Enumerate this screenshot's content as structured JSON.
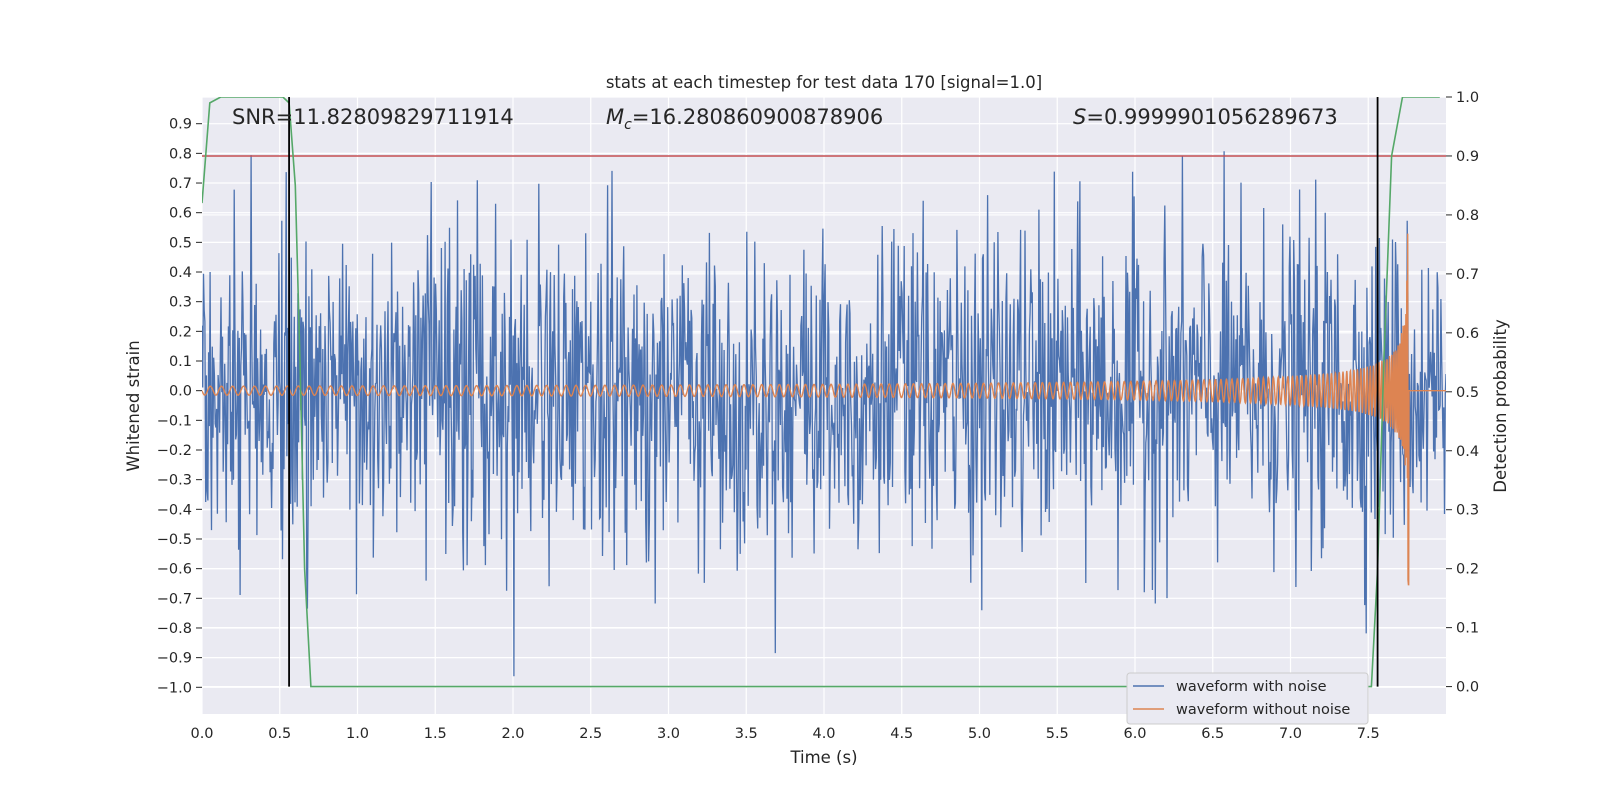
{
  "chart_data": {
    "type": "line",
    "title": "stats at each timestep for test data 170 [signal=1.0]",
    "xlabel": "Time (s)",
    "ylabel": "Whitened strain",
    "y2label": "Detection probability",
    "xlim": [
      0.0,
      8.0
    ],
    "ylim": [
      -1.09,
      0.99
    ],
    "y2lim": [
      -0.0465,
      1.0
    ],
    "xticks": [
      "0.0",
      "0.5",
      "1.0",
      "1.5",
      "2.0",
      "2.5",
      "3.0",
      "3.5",
      "4.0",
      "4.5",
      "5.0",
      "5.5",
      "6.0",
      "6.5",
      "7.0",
      "7.5"
    ],
    "xtick_values": [
      0.0,
      0.5,
      1.0,
      1.5,
      2.0,
      2.5,
      3.0,
      3.5,
      4.0,
      4.5,
      5.0,
      5.5,
      6.0,
      6.5,
      7.0,
      7.5
    ],
    "yticks": [
      "0.9",
      "0.8",
      "0.7",
      "0.6",
      "0.5",
      "0.4",
      "0.3",
      "0.2",
      "0.1",
      "0.0",
      "−0.1",
      "−0.2",
      "−0.3",
      "−0.4",
      "−0.5",
      "−0.6",
      "−0.7",
      "−0.8",
      "−0.9",
      "−1.0"
    ],
    "ytick_values": [
      0.9,
      0.8,
      0.7,
      0.6,
      0.5,
      0.4,
      0.3,
      0.2,
      0.1,
      0.0,
      -0.1,
      -0.2,
      -0.3,
      -0.4,
      -0.5,
      -0.6,
      -0.7,
      -0.8,
      -0.9,
      -1.0
    ],
    "y2ticks": [
      "1.0",
      "0.9",
      "0.8",
      "0.7",
      "0.6",
      "0.5",
      "0.4",
      "0.3",
      "0.2",
      "0.1",
      "0.0"
    ],
    "y2tick_values": [
      1.0,
      0.9,
      0.8,
      0.7,
      0.6,
      0.5,
      0.4,
      0.3,
      0.2,
      0.1,
      0.0
    ],
    "annotations": {
      "snr": "SNR=11.82809829711914",
      "mc_symbol": "M",
      "mc_sub": "c",
      "mc_value": "=16.280860900878906",
      "s_symbol": "S",
      "s_value": "=0.9999901056289673"
    },
    "threshold": {
      "axis": "y2",
      "value": 0.9,
      "color": "#c44e52"
    },
    "vlines": {
      "x": [
        0.56,
        7.56
      ],
      "color": "#000000"
    },
    "series": [
      {
        "name": "waveform with noise",
        "color": "#4c72b0",
        "type": "noise",
        "std": 0.16,
        "peak_max": 0.88,
        "peak_min": -1.0
      },
      {
        "name": "waveform without noise",
        "color": "#dd8452",
        "type": "chirp",
        "merger_time": 7.76,
        "start_amplitude": 0.015,
        "peak_amplitude": 0.71
      },
      {
        "name": "detection probability",
        "axis": "y2",
        "color": "#55a868",
        "points": [
          [
            0.0,
            0.82
          ],
          [
            0.05,
            0.99
          ],
          [
            0.12,
            1.0
          ],
          [
            0.52,
            1.0
          ],
          [
            0.56,
            0.99
          ],
          [
            0.6,
            0.85
          ],
          [
            0.63,
            0.55
          ],
          [
            0.66,
            0.2
          ],
          [
            0.7,
            0.0
          ],
          [
            7.52,
            0.0
          ],
          [
            7.56,
            0.2
          ],
          [
            7.6,
            0.55
          ],
          [
            7.65,
            0.9
          ],
          [
            7.72,
            1.0
          ],
          [
            7.96,
            1.0
          ]
        ]
      }
    ],
    "legend": {
      "position": "lower-right",
      "entries": [
        "waveform with noise",
        "waveform without noise"
      ]
    },
    "colors": {
      "plot_bg": "#eaeaf2",
      "grid": "#ffffff",
      "text": "#262626"
    }
  }
}
